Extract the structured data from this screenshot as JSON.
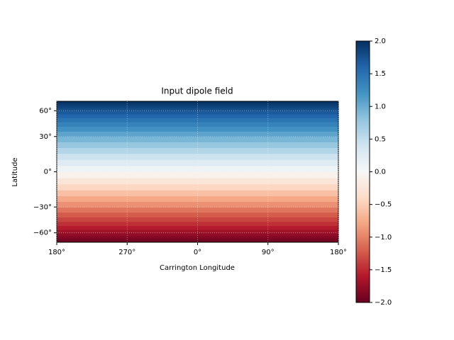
{
  "chart_data": {
    "type": "heatmap",
    "title": "Input dipole field",
    "xlabel": "Carrington Longitude",
    "ylabel": "Latitude",
    "xlim": [
      180,
      540
    ],
    "xticks": [
      {
        "value": 180,
        "label": "180°"
      },
      {
        "value": 270,
        "label": "270°"
      },
      {
        "value": 360,
        "label": "0°"
      },
      {
        "value": 450,
        "label": "90°"
      },
      {
        "value": 540,
        "label": "180°"
      }
    ],
    "ylim": [
      -90,
      90
    ],
    "y_scale": "sine",
    "yticks": [
      {
        "value": 60,
        "label": "60°"
      },
      {
        "value": 30,
        "label": "30°"
      },
      {
        "value": 0,
        "label": "0°"
      },
      {
        "value": -30,
        "label": "−30°"
      },
      {
        "value": -60,
        "label": "−60°"
      }
    ],
    "grid": true,
    "lat_bins": [
      -90,
      -85,
      -80,
      -75,
      -70,
      -65,
      -60,
      -55,
      -50,
      -45,
      -40,
      -35,
      -30,
      -25,
      -20,
      -15,
      -10,
      -5,
      0,
      5,
      10,
      15,
      20,
      25,
      30,
      35,
      40,
      45,
      50,
      55,
      60,
      65,
      70,
      75,
      80,
      85,
      90
    ],
    "values": [
      -2.0,
      -1.98,
      -1.95,
      -1.91,
      -1.85,
      -1.77,
      -1.69,
      -1.59,
      -1.47,
      -1.35,
      -1.22,
      -1.07,
      -0.92,
      -0.77,
      -0.6,
      -0.43,
      -0.26,
      -0.09,
      0.09,
      0.26,
      0.43,
      0.6,
      0.77,
      0.92,
      1.07,
      1.22,
      1.35,
      1.47,
      1.59,
      1.69,
      1.77,
      1.85,
      1.91,
      1.95,
      1.98,
      2.0
    ],
    "colormap": [
      "#67001f",
      "#b2182b",
      "#d6604d",
      "#f4a582",
      "#fddbc7",
      "#f7f7f7",
      "#d1e5f0",
      "#92c5de",
      "#4393c3",
      "#2166ac",
      "#053061"
    ],
    "clim": [
      -2,
      2
    ],
    "colorbar_ticks": [
      {
        "value": 2,
        "label": "2.0"
      },
      {
        "value": 1.5,
        "label": "1.5"
      },
      {
        "value": 1,
        "label": "1.0"
      },
      {
        "value": 0.5,
        "label": "0.5"
      },
      {
        "value": 0,
        "label": "0.0"
      },
      {
        "value": -0.5,
        "label": "−0.5"
      },
      {
        "value": -1,
        "label": "−1.0"
      },
      {
        "value": -1.5,
        "label": "−1.5"
      },
      {
        "value": -2,
        "label": "−2.0"
      }
    ]
  }
}
